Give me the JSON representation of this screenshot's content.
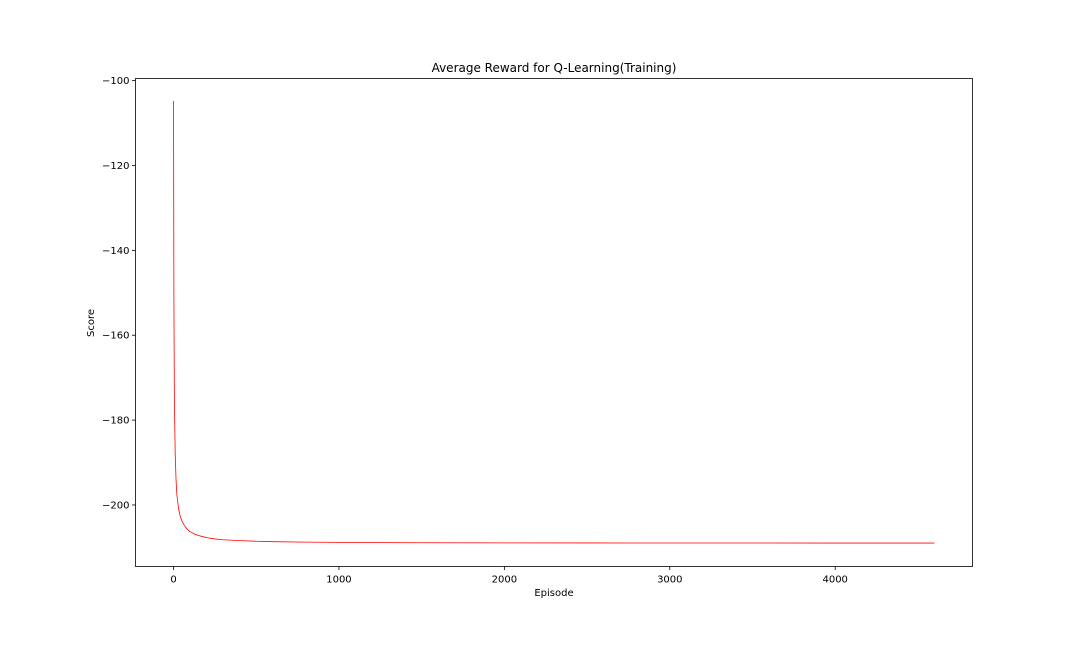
{
  "chart_data": {
    "type": "line",
    "title": "Average Reward for Q-Learning(Training)",
    "xlabel": "Episode",
    "ylabel": "Score",
    "xlim": [
      -230,
      4830
    ],
    "ylim": [
      -214.5,
      -99.5
    ],
    "xticks": [
      0,
      1000,
      2000,
      3000,
      4000
    ],
    "xtick_labels": [
      "0",
      "1000",
      "2000",
      "3000",
      "4000"
    ],
    "yticks": [
      -200,
      -180,
      -160,
      -140,
      -120,
      -100
    ],
    "ytick_labels": [
      "−200",
      "−180",
      "−160",
      "−140",
      "−120",
      "−100"
    ],
    "grid": false,
    "series": [
      {
        "name": "Average Reward",
        "color": "#ff0000",
        "x": [
          0,
          2,
          5,
          10,
          15,
          20,
          30,
          40,
          50,
          60,
          80,
          100,
          130,
          160,
          200,
          250,
          300,
          400,
          500,
          600,
          800,
          1000,
          1200,
          1500,
          2000,
          2500,
          3000,
          3500,
          4000,
          4500,
          4600
        ],
        "y": [
          -104.8,
          -150,
          -175,
          -188,
          -194,
          -197.5,
          -200.8,
          -202.6,
          -203.7,
          -204.5,
          -205.6,
          -206.3,
          -206.9,
          -207.3,
          -207.7,
          -208.0,
          -208.2,
          -208.4,
          -208.55,
          -208.65,
          -208.75,
          -208.82,
          -208.87,
          -208.9,
          -208.93,
          -208.95,
          -208.96,
          -208.97,
          -208.98,
          -208.98,
          -208.98
        ]
      }
    ]
  }
}
